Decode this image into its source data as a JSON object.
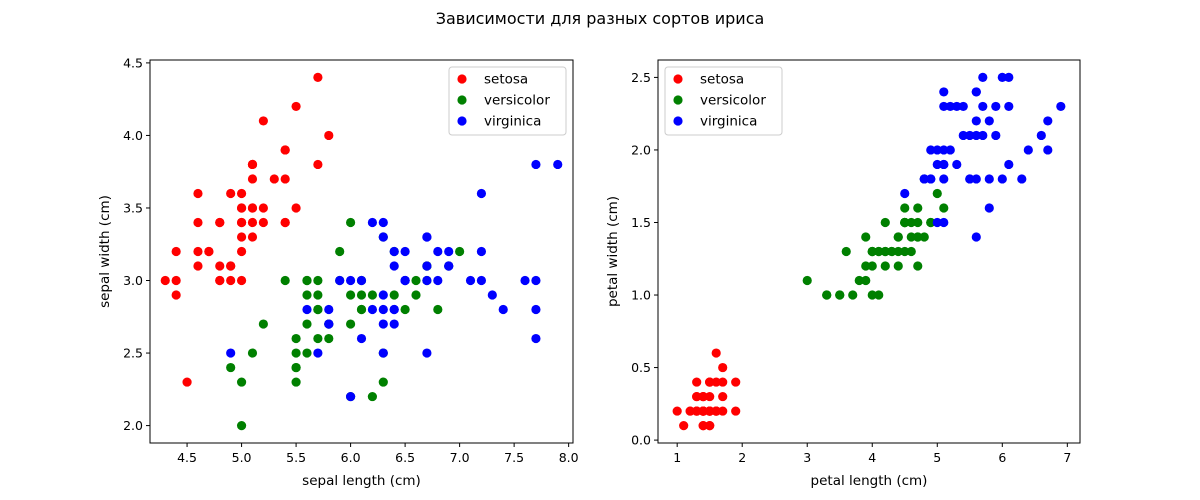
{
  "figure": {
    "suptitle": "Зависимости для разных сортов ириса"
  },
  "chart_data": [
    {
      "type": "scatter",
      "xlabel": "sepal length (cm)",
      "ylabel": "sepal width (cm)",
      "xlim": [
        4.16,
        8.04
      ],
      "ylim": [
        1.88,
        4.52
      ],
      "xticks": [
        4.5,
        5.0,
        5.5,
        6.0,
        6.5,
        7.0,
        7.5,
        8.0
      ],
      "xtick_labels": [
        "4.5",
        "5.0",
        "5.5",
        "6.0",
        "6.5",
        "7.0",
        "7.5",
        "8.0"
      ],
      "yticks": [
        2.0,
        2.5,
        3.0,
        3.5,
        4.0,
        4.5
      ],
      "ytick_labels": [
        "2.0",
        "2.5",
        "3.0",
        "3.5",
        "4.0",
        "4.5"
      ],
      "legend": "top-right",
      "grid": false,
      "series": [
        {
          "name": "setosa",
          "color": "#ff0000",
          "x": [
            5.1,
            4.9,
            4.7,
            4.6,
            5.0,
            5.4,
            4.6,
            5.0,
            4.4,
            4.9,
            5.4,
            4.8,
            4.8,
            4.3,
            5.8,
            5.7,
            5.4,
            5.1,
            5.7,
            5.1,
            5.4,
            5.1,
            4.6,
            5.1,
            4.8,
            5.0,
            5.0,
            5.2,
            5.2,
            4.7,
            4.8,
            5.4,
            5.2,
            5.5,
            4.9,
            5.0,
            5.5,
            4.9,
            4.4,
            5.1,
            5.0,
            4.5,
            4.4,
            5.0,
            5.1,
            4.8,
            5.1,
            4.6,
            5.3,
            5.0
          ],
          "y": [
            3.5,
            3.0,
            3.2,
            3.1,
            3.6,
            3.9,
            3.4,
            3.4,
            2.9,
            3.1,
            3.7,
            3.4,
            3.0,
            3.0,
            4.0,
            4.4,
            3.9,
            3.5,
            3.8,
            3.8,
            3.4,
            3.7,
            3.6,
            3.3,
            3.4,
            3.0,
            3.4,
            3.5,
            3.4,
            3.2,
            3.1,
            3.4,
            4.1,
            4.2,
            3.1,
            3.2,
            3.5,
            3.6,
            3.0,
            3.4,
            3.5,
            2.3,
            3.2,
            3.5,
            3.8,
            3.0,
            3.8,
            3.2,
            3.7,
            3.3
          ]
        },
        {
          "name": "versicolor",
          "color": "#008000",
          "x": [
            7.0,
            6.4,
            6.9,
            5.5,
            6.5,
            5.7,
            6.3,
            4.9,
            6.6,
            5.2,
            5.0,
            5.9,
            6.0,
            6.1,
            5.6,
            6.7,
            5.6,
            5.8,
            6.2,
            5.6,
            5.9,
            6.1,
            6.3,
            6.1,
            6.4,
            6.6,
            6.8,
            6.7,
            6.0,
            5.7,
            5.5,
            5.5,
            5.8,
            6.0,
            5.4,
            6.0,
            6.7,
            6.3,
            5.6,
            5.5,
            5.5,
            6.1,
            5.8,
            5.0,
            5.6,
            5.7,
            5.7,
            6.2,
            5.1,
            5.7
          ],
          "y": [
            3.2,
            3.2,
            3.1,
            2.3,
            2.8,
            2.8,
            3.3,
            2.4,
            2.9,
            2.7,
            2.0,
            3.0,
            2.2,
            2.9,
            2.9,
            3.1,
            3.0,
            2.7,
            2.2,
            2.5,
            3.2,
            2.8,
            2.5,
            2.8,
            2.9,
            3.0,
            2.8,
            3.0,
            2.9,
            2.6,
            2.4,
            2.4,
            2.7,
            2.7,
            3.0,
            3.4,
            3.1,
            2.3,
            3.0,
            2.5,
            2.6,
            3.0,
            2.6,
            2.3,
            2.7,
            3.0,
            2.9,
            2.9,
            2.5,
            2.8
          ]
        },
        {
          "name": "virginica",
          "color": "#0000ff",
          "x": [
            6.3,
            5.8,
            7.1,
            6.3,
            6.5,
            7.6,
            4.9,
            7.3,
            6.7,
            7.2,
            6.5,
            6.4,
            6.8,
            5.7,
            5.8,
            6.4,
            6.5,
            7.7,
            7.7,
            6.0,
            6.9,
            5.6,
            7.7,
            6.3,
            6.7,
            7.2,
            6.2,
            6.1,
            6.4,
            7.2,
            7.4,
            7.9,
            6.4,
            6.3,
            6.1,
            7.7,
            6.3,
            6.4,
            6.0,
            6.9,
            6.7,
            6.9,
            5.8,
            6.8,
            6.7,
            6.7,
            6.3,
            6.5,
            6.2,
            5.9
          ],
          "y": [
            3.3,
            2.7,
            3.0,
            2.9,
            3.0,
            3.0,
            2.5,
            2.9,
            2.5,
            3.6,
            3.2,
            2.7,
            3.0,
            2.5,
            2.8,
            3.2,
            3.0,
            3.8,
            2.6,
            2.2,
            3.2,
            2.8,
            2.8,
            2.7,
            3.3,
            3.2,
            2.8,
            3.0,
            2.8,
            3.0,
            2.8,
            3.8,
            2.8,
            2.8,
            2.6,
            3.0,
            3.4,
            3.1,
            3.0,
            3.1,
            3.1,
            3.1,
            2.7,
            3.2,
            3.3,
            3.0,
            2.5,
            3.0,
            3.4,
            3.0
          ]
        }
      ]
    },
    {
      "type": "scatter",
      "xlabel": "petal length (cm)",
      "ylabel": "petal width (cm)",
      "xlim": [
        0.705,
        7.195
      ],
      "ylim": [
        -0.02,
        2.62
      ],
      "xticks": [
        1,
        2,
        3,
        4,
        5,
        6,
        7
      ],
      "xtick_labels": [
        "1",
        "2",
        "3",
        "4",
        "5",
        "6",
        "7"
      ],
      "yticks": [
        0.0,
        0.5,
        1.0,
        1.5,
        2.0,
        2.5
      ],
      "ytick_labels": [
        "0.0",
        "0.5",
        "1.0",
        "1.5",
        "2.0",
        "2.5"
      ],
      "legend": "top-left",
      "grid": false,
      "series": [
        {
          "name": "setosa",
          "color": "#ff0000",
          "x": [
            1.4,
            1.4,
            1.3,
            1.5,
            1.4,
            1.7,
            1.4,
            1.5,
            1.4,
            1.5,
            1.5,
            1.6,
            1.4,
            1.1,
            1.2,
            1.5,
            1.3,
            1.4,
            1.7,
            1.5,
            1.7,
            1.5,
            1.0,
            1.7,
            1.9,
            1.6,
            1.6,
            1.5,
            1.4,
            1.6,
            1.6,
            1.5,
            1.5,
            1.4,
            1.5,
            1.2,
            1.3,
            1.4,
            1.3,
            1.5,
            1.3,
            1.3,
            1.3,
            1.6,
            1.9,
            1.4,
            1.6,
            1.4,
            1.5,
            1.4
          ],
          "y": [
            0.2,
            0.2,
            0.2,
            0.2,
            0.2,
            0.4,
            0.3,
            0.2,
            0.2,
            0.1,
            0.2,
            0.2,
            0.1,
            0.1,
            0.2,
            0.4,
            0.4,
            0.3,
            0.3,
            0.3,
            0.2,
            0.4,
            0.2,
            0.5,
            0.2,
            0.2,
            0.4,
            0.2,
            0.2,
            0.2,
            0.2,
            0.4,
            0.1,
            0.2,
            0.2,
            0.2,
            0.2,
            0.1,
            0.2,
            0.2,
            0.3,
            0.3,
            0.2,
            0.6,
            0.4,
            0.3,
            0.2,
            0.2,
            0.2,
            0.2
          ]
        },
        {
          "name": "versicolor",
          "color": "#008000",
          "x": [
            4.7,
            4.5,
            4.9,
            4.0,
            4.6,
            4.5,
            4.7,
            3.3,
            4.6,
            3.9,
            3.5,
            4.2,
            4.0,
            4.7,
            3.6,
            4.4,
            4.5,
            4.1,
            4.5,
            3.9,
            4.8,
            4.0,
            4.9,
            4.7,
            4.3,
            4.4,
            4.8,
            5.0,
            4.5,
            3.5,
            3.8,
            3.7,
            3.9,
            5.1,
            4.5,
            4.5,
            4.7,
            4.4,
            4.1,
            4.0,
            4.4,
            4.6,
            4.0,
            3.3,
            4.2,
            4.2,
            4.2,
            4.3,
            3.0,
            4.1
          ],
          "y": [
            1.4,
            1.5,
            1.5,
            1.3,
            1.5,
            1.3,
            1.6,
            1.0,
            1.3,
            1.4,
            1.0,
            1.5,
            1.0,
            1.4,
            1.3,
            1.4,
            1.5,
            1.0,
            1.5,
            1.1,
            1.8,
            1.3,
            1.5,
            1.2,
            1.3,
            1.4,
            1.4,
            1.7,
            1.5,
            1.0,
            1.1,
            1.0,
            1.2,
            1.6,
            1.5,
            1.6,
            1.5,
            1.3,
            1.3,
            1.3,
            1.2,
            1.4,
            1.2,
            1.0,
            1.3,
            1.2,
            1.3,
            1.3,
            1.1,
            1.3
          ]
        },
        {
          "name": "virginica",
          "color": "#0000ff",
          "x": [
            6.0,
            5.1,
            5.9,
            5.6,
            5.8,
            6.6,
            4.5,
            6.3,
            5.8,
            6.1,
            5.1,
            5.3,
            5.5,
            5.0,
            5.1,
            5.3,
            5.5,
            6.7,
            6.9,
            5.0,
            5.7,
            4.9,
            6.7,
            4.9,
            5.7,
            6.0,
            4.8,
            4.9,
            5.6,
            5.8,
            6.1,
            6.4,
            5.6,
            5.1,
            5.6,
            6.1,
            5.6,
            5.5,
            4.8,
            5.4,
            5.6,
            5.1,
            5.1,
            5.9,
            5.7,
            5.2,
            5.0,
            5.2,
            5.4,
            5.1
          ],
          "y": [
            2.5,
            1.9,
            2.1,
            1.8,
            2.2,
            2.1,
            1.7,
            1.8,
            1.8,
            2.5,
            2.0,
            1.9,
            2.1,
            2.0,
            2.4,
            2.3,
            1.8,
            2.2,
            2.3,
            1.5,
            2.3,
            2.0,
            2.0,
            1.8,
            2.1,
            1.8,
            1.8,
            1.8,
            2.1,
            1.6,
            1.9,
            2.0,
            2.2,
            1.5,
            1.4,
            2.3,
            2.4,
            1.8,
            1.8,
            2.1,
            2.4,
            2.3,
            1.9,
            2.3,
            2.5,
            2.3,
            1.9,
            2.0,
            2.3,
            1.8
          ]
        }
      ]
    }
  ]
}
